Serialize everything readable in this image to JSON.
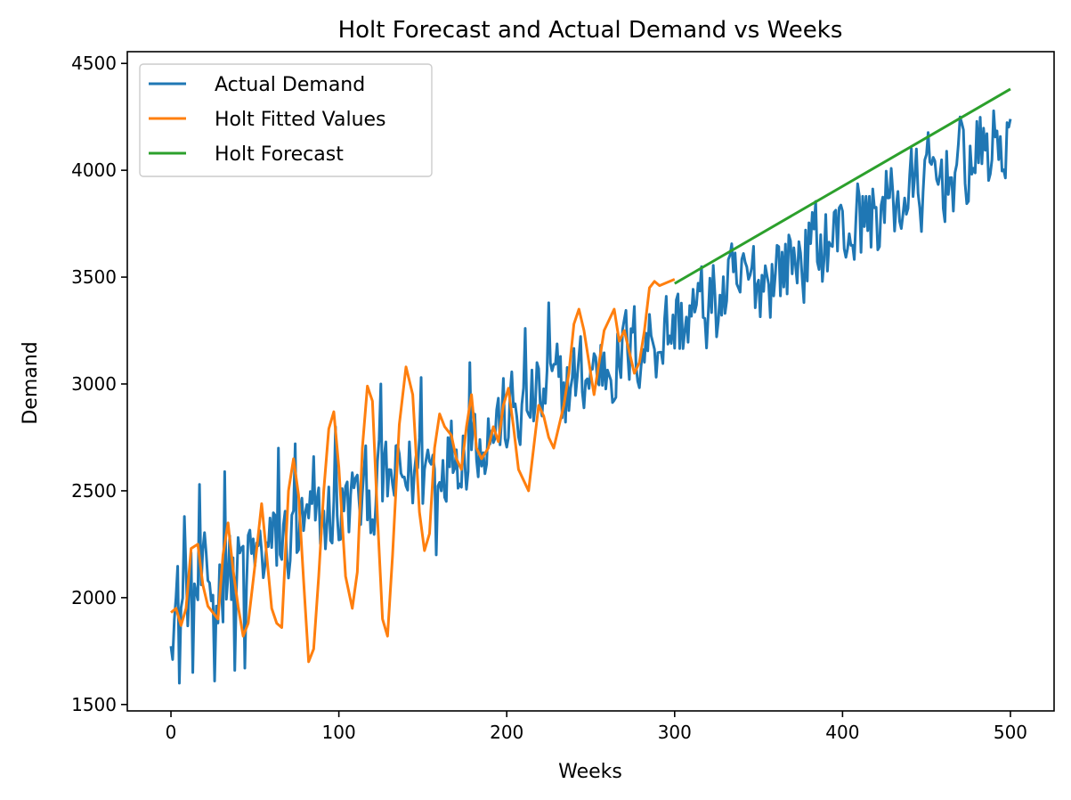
{
  "chart_data": {
    "type": "line",
    "title": "Holt Forecast and Actual Demand vs Weeks",
    "xlabel": "Weeks",
    "ylabel": "Demand",
    "xlim": [
      -26,
      526
    ],
    "ylim": [
      1470,
      4555
    ],
    "xticks": [
      0,
      100,
      200,
      300,
      400,
      500
    ],
    "yticks": [
      1500,
      2000,
      2500,
      3000,
      3500,
      4000,
      4500
    ],
    "grid": false,
    "legend_position": "top-left",
    "series": [
      {
        "name": "Actual Demand",
        "color": "#1f77b4",
        "generated": true,
        "x_range": [
          0,
          500
        ],
        "trend": {
          "start": 1960,
          "end": 4150
        },
        "noise_amplitude": 300,
        "early_spikes": [
          [
            5,
            1600
          ],
          [
            8,
            2380
          ],
          [
            13,
            1650
          ],
          [
            17,
            2530
          ],
          [
            26,
            1610
          ],
          [
            32,
            2590
          ],
          [
            38,
            1660
          ],
          [
            44,
            1670
          ],
          [
            64,
            2700
          ],
          [
            74,
            2720
          ],
          [
            80,
            2400
          ],
          [
            85,
            2660
          ],
          [
            98,
            2800
          ],
          [
            110,
            2560
          ],
          [
            125,
            3000
          ],
          [
            149,
            3030
          ],
          [
            158,
            2200
          ],
          [
            178,
            3100
          ],
          [
            211,
            3260
          ],
          [
            225,
            3380
          ]
        ],
        "x_step": 1
      },
      {
        "name": "Holt Fitted Values",
        "color": "#ff7f0e",
        "x": [
          0,
          3,
          6,
          9,
          12,
          16,
          19,
          22,
          25,
          28,
          31,
          34,
          37,
          40,
          43,
          46,
          50,
          54,
          57,
          60,
          63,
          66,
          70,
          73,
          76,
          79,
          82,
          85,
          88,
          91,
          94,
          97,
          100,
          104,
          108,
          111,
          114,
          117,
          120,
          123,
          126,
          129,
          132,
          136,
          140,
          144,
          148,
          151,
          154,
          157,
          160,
          163,
          167,
          170,
          173,
          176,
          179,
          182,
          185,
          189,
          192,
          195,
          198,
          201,
          204,
          207,
          210,
          213,
          216,
          219,
          222,
          225,
          228,
          231,
          234,
          237,
          240,
          243,
          246,
          249,
          252,
          255,
          258,
          261,
          264,
          267,
          270,
          273,
          276,
          279,
          282,
          285,
          288,
          291,
          294,
          297,
          300
        ],
        "y": [
          1930,
          1950,
          1870,
          1950,
          2230,
          2250,
          2060,
          1960,
          1930,
          1900,
          2200,
          2350,
          2130,
          1960,
          1820,
          1880,
          2150,
          2440,
          2200,
          1950,
          1880,
          1860,
          2500,
          2650,
          2480,
          2080,
          1700,
          1760,
          2100,
          2500,
          2790,
          2870,
          2610,
          2100,
          1950,
          2120,
          2700,
          2990,
          2920,
          2380,
          1900,
          1820,
          2200,
          2810,
          3080,
          2950,
          2400,
          2220,
          2300,
          2700,
          2860,
          2800,
          2760,
          2650,
          2600,
          2800,
          2950,
          2700,
          2650,
          2700,
          2800,
          2730,
          2900,
          2980,
          2800,
          2600,
          2550,
          2500,
          2700,
          2900,
          2850,
          2750,
          2700,
          2800,
          2900,
          3050,
          3280,
          3350,
          3250,
          3100,
          2950,
          3100,
          3250,
          3300,
          3350,
          3200,
          3250,
          3150,
          3050,
          3100,
          3250,
          3450,
          3480,
          3460,
          3470,
          3480,
          3490
        ]
      },
      {
        "name": "Holt Forecast",
        "color": "#2ca02c",
        "x": [
          300,
          500
        ],
        "y": [
          3470,
          4380
        ]
      }
    ]
  }
}
